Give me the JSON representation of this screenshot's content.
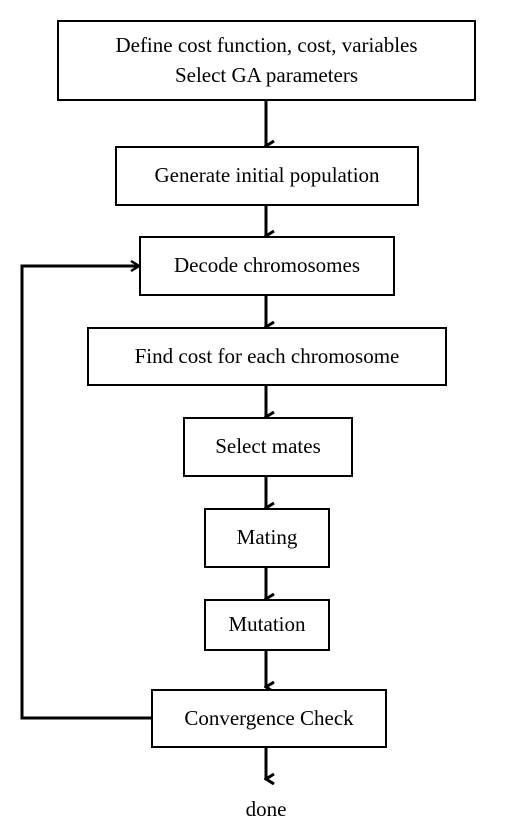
{
  "flowchart": {
    "define": {
      "line1": "Define cost function, cost, variables",
      "line2": "Select GA parameters"
    },
    "generate": "Generate initial population",
    "decode": "Decode chromosomes",
    "find_cost": "Find cost for each chromosome",
    "select_mates": "Select mates",
    "mating": "Mating",
    "mutation": "Mutation",
    "convergence": "Convergence Check",
    "done": "done"
  }
}
